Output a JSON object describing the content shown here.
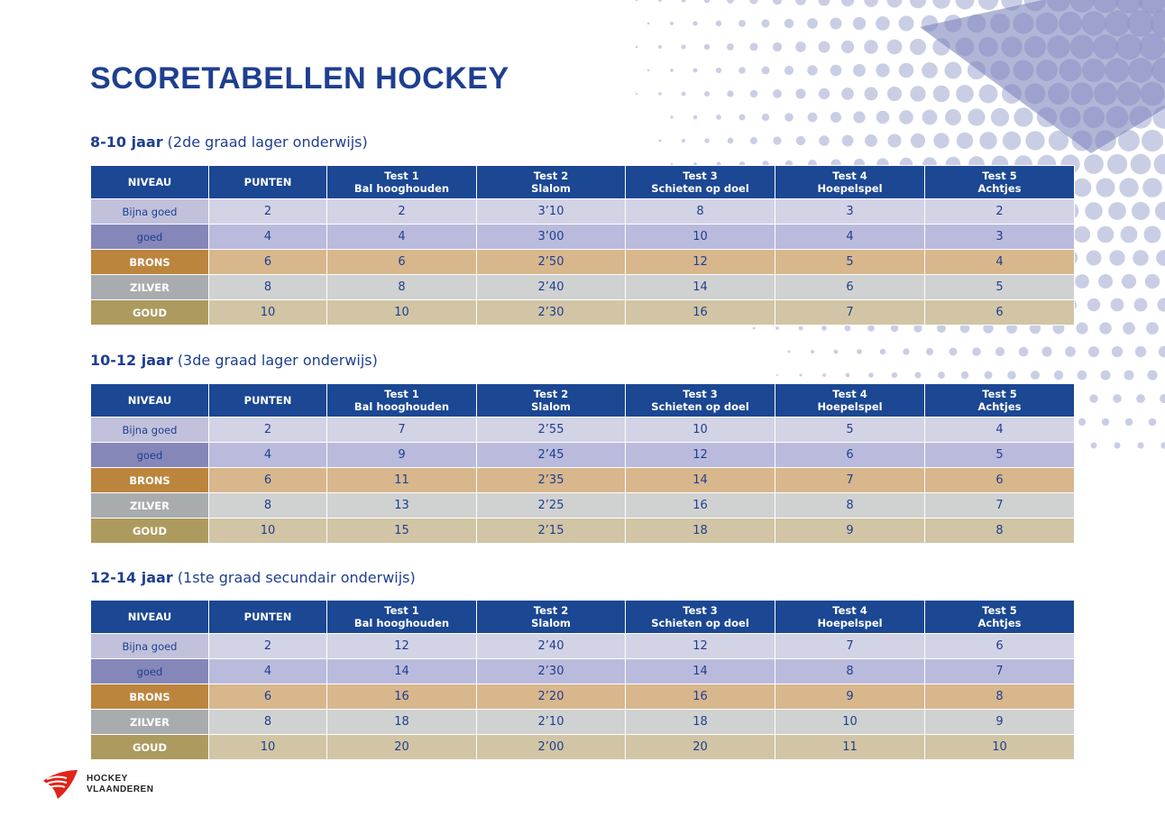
{
  "title": "SCORETABELLEN HOCKEY",
  "headers": [
    {
      "line1": "NIVEAU",
      "line2": ""
    },
    {
      "line1": "PUNTEN",
      "line2": ""
    },
    {
      "line1": "Test 1",
      "line2": "Bal hooghouden"
    },
    {
      "line1": "Test 2",
      "line2": "Slalom"
    },
    {
      "line1": "Test 3",
      "line2": "Schieten op doel"
    },
    {
      "line1": "Test 4",
      "line2": "Hoepelspel"
    },
    {
      "line1": "Test 5",
      "line2": "Achtjes"
    }
  ],
  "sections": [
    {
      "age": "8-10 jaar",
      "desc": "(2de graad lager onderwijs)",
      "rows": [
        [
          "Bijna goed",
          "2",
          "2",
          "3’10",
          "8",
          "3",
          "2"
        ],
        [
          "goed",
          "4",
          "4",
          "3’00",
          "10",
          "4",
          "3"
        ],
        [
          "BRONS",
          "6",
          "6",
          "2’50",
          "12",
          "5",
          "4"
        ],
        [
          "ZILVER",
          "8",
          "8",
          "2’40",
          "14",
          "6",
          "5"
        ],
        [
          "GOUD",
          "10",
          "10",
          "2’30",
          "16",
          "7",
          "6"
        ]
      ]
    },
    {
      "age": "10-12 jaar",
      "desc": "(3de graad lager onderwijs)",
      "rows": [
        [
          "Bijna goed",
          "2",
          "7",
          "2’55",
          "10",
          "5",
          "4"
        ],
        [
          "goed",
          "4",
          "9",
          "2’45",
          "12",
          "6",
          "5"
        ],
        [
          "BRONS",
          "6",
          "11",
          "2’35",
          "14",
          "7",
          "6"
        ],
        [
          "ZILVER",
          "8",
          "13",
          "2’25",
          "16",
          "8",
          "7"
        ],
        [
          "GOUD",
          "10",
          "15",
          "2’15",
          "18",
          "9",
          "8"
        ]
      ]
    },
    {
      "age": "12-14 jaar",
      "desc": "(1ste graad secundair onderwijs)",
      "rows": [
        [
          "Bijna goed",
          "2",
          "12",
          "2’40",
          "12",
          "7",
          "6"
        ],
        [
          "goed",
          "4",
          "14",
          "2’30",
          "14",
          "8",
          "7"
        ],
        [
          "BRONS",
          "6",
          "16",
          "2’20",
          "16",
          "9",
          "8"
        ],
        [
          "ZILVER",
          "8",
          "18",
          "2’10",
          "18",
          "10",
          "9"
        ],
        [
          "GOUD",
          "10",
          "20",
          "2’00",
          "20",
          "11",
          "10"
        ]
      ]
    }
  ],
  "logo": {
    "line1": "HOCKEY",
    "line2": "VLAANDEREN"
  },
  "colors": {
    "header": "#1b4793",
    "title": "#1e3f8f",
    "logo_red": "#e2231a"
  }
}
